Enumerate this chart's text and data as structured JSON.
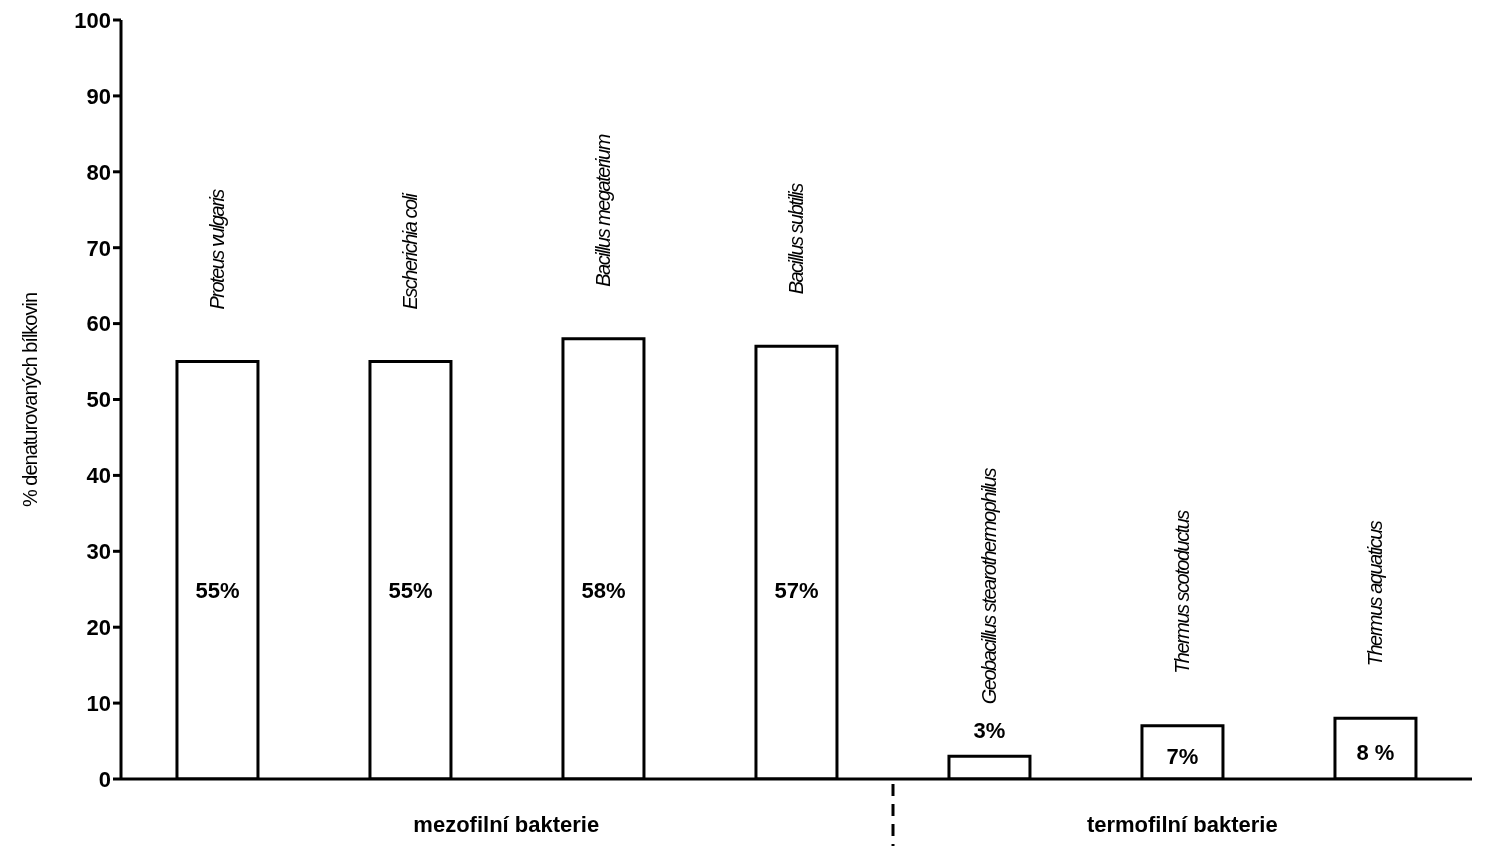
{
  "chart_data": {
    "type": "bar",
    "ylabel": "% denaturovaných bílkovin",
    "categories": [
      "Proteus vulgaris",
      "Escherichia coli",
      "Bacillus megaterium",
      "Bacillus subtilis",
      "Geobacillus stearothermophilus",
      "Thermus scotoductus",
      "Thermus aquaticus"
    ],
    "values": [
      55,
      55,
      58,
      57,
      3,
      7,
      8
    ],
    "value_labels": [
      "55%",
      "55%",
      "58%",
      "57%",
      "3%",
      "7%",
      "8 %"
    ],
    "color": "#ffffff",
    "ylim": [
      0,
      100
    ],
    "yticks": [
      0,
      10,
      20,
      30,
      40,
      50,
      60,
      70,
      80,
      90,
      100
    ],
    "grid": false,
    "annotations": [
      "mezofilní bakterie",
      "termofilní bakterie"
    ]
  }
}
